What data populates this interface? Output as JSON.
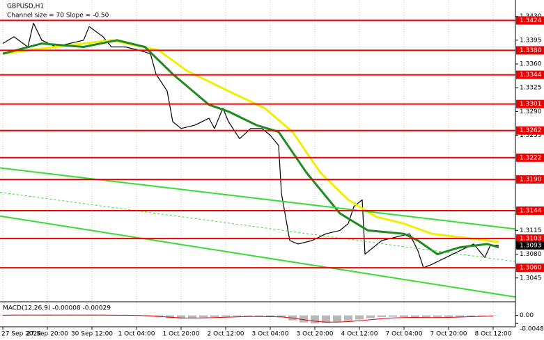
{
  "chart_data": [
    {
      "type": "line",
      "title": "GBPUSD,H1",
      "subtitle": "Channel size = 70 Slope = -0.50",
      "xlim": [
        -1,
        184
      ],
      "ylim": [
        1.3012,
        1.3449
      ],
      "xticks": [
        {
          "value": 0,
          "label": "27 Sep 2024"
        },
        {
          "value": 16,
          "label": "27 Sep 20:00"
        },
        {
          "value": 32,
          "label": "30 Sep 12:00"
        },
        {
          "value": 48,
          "label": "1 Oct 04:00"
        },
        {
          "value": 64,
          "label": "1 Oct 20:00"
        },
        {
          "value": 80,
          "label": "2 Oct 12:00"
        },
        {
          "value": 96,
          "label": "3 Oct 04:00"
        },
        {
          "value": 112,
          "label": "3 Oct 20:00"
        },
        {
          "value": 128,
          "label": "4 Oct 12:00"
        },
        {
          "value": 144,
          "label": "7 Oct 04:00"
        },
        {
          "value": 160,
          "label": "7 Oct 20:00"
        },
        {
          "value": 176,
          "label": "8 Oct 12:00"
        }
      ],
      "yticks": [
        {
          "value": 1.343,
          "label": "1.3430"
        },
        1.3395,
        {
          "value": 1.336,
          "label": "1.3360"
        },
        1.3325,
        {
          "value": 1.329,
          "label": "1.3290"
        },
        1.3255,
        1.3115,
        {
          "value": 1.308,
          "label": "1.3080"
        },
        1.3045
      ],
      "levels": [
        1.3424,
        {
          "value": 1.338,
          "label": "1.3380"
        },
        1.3344,
        1.3301,
        1.3262,
        1.3222,
        {
          "value": 1.319,
          "label": "1.3190"
        },
        1.3144,
        1.3103,
        {
          "value": 1.306,
          "label": "1.3060"
        }
      ],
      "level_color": "#ee0000",
      "last_price": 1.3093,
      "grid": true,
      "series": [
        {
          "color": "#000000",
          "width": 1.2,
          "x": [
            0,
            4,
            9,
            11,
            14,
            19,
            24,
            29,
            31,
            36,
            39,
            44,
            49,
            53,
            55,
            59,
            61,
            64,
            69,
            74,
            76,
            79,
            81,
            85,
            89,
            93,
            96,
            99,
            100,
            103,
            106,
            111,
            116,
            121,
            124,
            126,
            129,
            130,
            133,
            136,
            141,
            146,
            149,
            151,
            154,
            159,
            164,
            169,
            173,
            175,
            178
          ],
          "values": [
            1.339,
            1.34,
            1.3385,
            1.342,
            1.3395,
            1.3385,
            1.339,
            1.3395,
            1.3415,
            1.34,
            1.3385,
            1.3385,
            1.338,
            1.3375,
            1.3345,
            1.332,
            1.3275,
            1.3265,
            1.327,
            1.328,
            1.3265,
            1.3295,
            1.3275,
            1.325,
            1.3265,
            1.3265,
            1.3255,
            1.324,
            1.317,
            1.31,
            1.3095,
            1.31,
            1.311,
            1.3115,
            1.3125,
            1.315,
            1.316,
            1.308,
            1.309,
            1.31,
            1.3105,
            1.311,
            1.3085,
            1.306,
            1.3065,
            1.3075,
            1.3085,
            1.3095,
            1.3075,
            1.3093,
            1.3093
          ]
        },
        {
          "color": "#f2ee00",
          "width": 3,
          "x": [
            0,
            19,
            39,
            56,
            66,
            81,
            94,
            104,
            114,
            124,
            134,
            144,
            154,
            164,
            178
          ],
          "values": [
            1.3375,
            1.3385,
            1.3395,
            1.338,
            1.335,
            1.332,
            1.3295,
            1.326,
            1.32,
            1.316,
            1.3135,
            1.3125,
            1.311,
            1.3105,
            1.3098
          ]
        },
        {
          "color": "#1f8a1f",
          "width": 3,
          "x": [
            0,
            14,
            29,
            41,
            51,
            61,
            74,
            81,
            91,
            99,
            109,
            121,
            131,
            144,
            149,
            156,
            164,
            174,
            178
          ],
          "values": [
            1.3375,
            1.339,
            1.3385,
            1.3395,
            1.3385,
            1.3345,
            1.33,
            1.329,
            1.327,
            1.326,
            1.32,
            1.314,
            1.3115,
            1.311,
            1.31,
            1.308,
            1.309,
            1.3095,
            1.309
          ]
        },
        {
          "color": "#33dd33",
          "width": 2,
          "x": [
            -1,
            184
          ],
          "values": [
            1.3207,
            1.3117
          ]
        },
        {
          "color": "#33dd33",
          "width": 1,
          "dashed": true,
          "x": [
            -1,
            184
          ],
          "values": [
            1.3171,
            1.3069
          ]
        },
        {
          "color": "#33dd33",
          "width": 2,
          "x": [
            -1,
            184
          ],
          "values": [
            1.3136,
            1.3017
          ]
        }
      ]
    },
    {
      "type": "macd",
      "title": "MACD(12,26,9) -0.00008 -0.00029",
      "xlim": [
        -1,
        184
      ],
      "ylim": [
        -0.006,
        0.0065
      ],
      "yticks": [
        {
          "value": 0,
          "label": "0.00"
        },
        -0.00483
      ],
      "x": [
        0,
        4,
        8,
        12,
        16,
        20,
        24,
        28,
        32,
        36,
        40,
        44,
        48,
        52,
        56,
        60,
        64,
        68,
        72,
        76,
        80,
        84,
        88,
        92,
        96,
        100,
        104,
        108,
        112,
        116,
        120,
        124,
        128,
        132,
        136,
        140,
        144,
        148,
        152,
        156,
        160,
        164,
        168,
        172,
        176
      ],
      "series": [
        {
          "type": "bar",
          "color": "#b8b8b8",
          "values": [
            0.0002,
            0.0003,
            0.0003,
            0.0002,
            0.0001,
            0.0002,
            0.0003,
            0.0002,
            0.0001,
            0.0002,
            0.0001,
            0.0,
            -0.0001,
            -0.0005,
            -0.0012,
            -0.0018,
            -0.002,
            -0.0016,
            -0.0012,
            -0.001,
            -0.0008,
            -0.0006,
            -0.0005,
            -0.0007,
            -0.0009,
            -0.0012,
            -0.003,
            -0.0042,
            -0.0048,
            -0.0046,
            -0.004,
            -0.0032,
            -0.0024,
            -0.0016,
            -0.001,
            -0.0008,
            -0.001,
            -0.0012,
            -0.0014,
            -0.0012,
            -0.001,
            -0.0008,
            -0.0006,
            -0.0004,
            -0.0002
          ]
        },
        {
          "type": "line",
          "color": "#dd0000",
          "values": [
            0.0001,
            0.0002,
            0.0002,
            0.0002,
            0.0002,
            0.0002,
            0.0002,
            0.0002,
            0.0002,
            0.0002,
            0.0001,
            0.0001,
            0.0,
            -0.0002,
            -0.0006,
            -0.0011,
            -0.0015,
            -0.0016,
            -0.0015,
            -0.0013,
            -0.0011,
            -0.0009,
            -0.0007,
            -0.0007,
            -0.0008,
            -0.0009,
            -0.0016,
            -0.0026,
            -0.0035,
            -0.004,
            -0.004,
            -0.0037,
            -0.0032,
            -0.0026,
            -0.002,
            -0.0015,
            -0.0013,
            -0.0012,
            -0.0013,
            -0.0013,
            -0.0012,
            -0.001,
            -0.0008,
            -0.0006,
            -0.0004
          ]
        }
      ]
    }
  ]
}
